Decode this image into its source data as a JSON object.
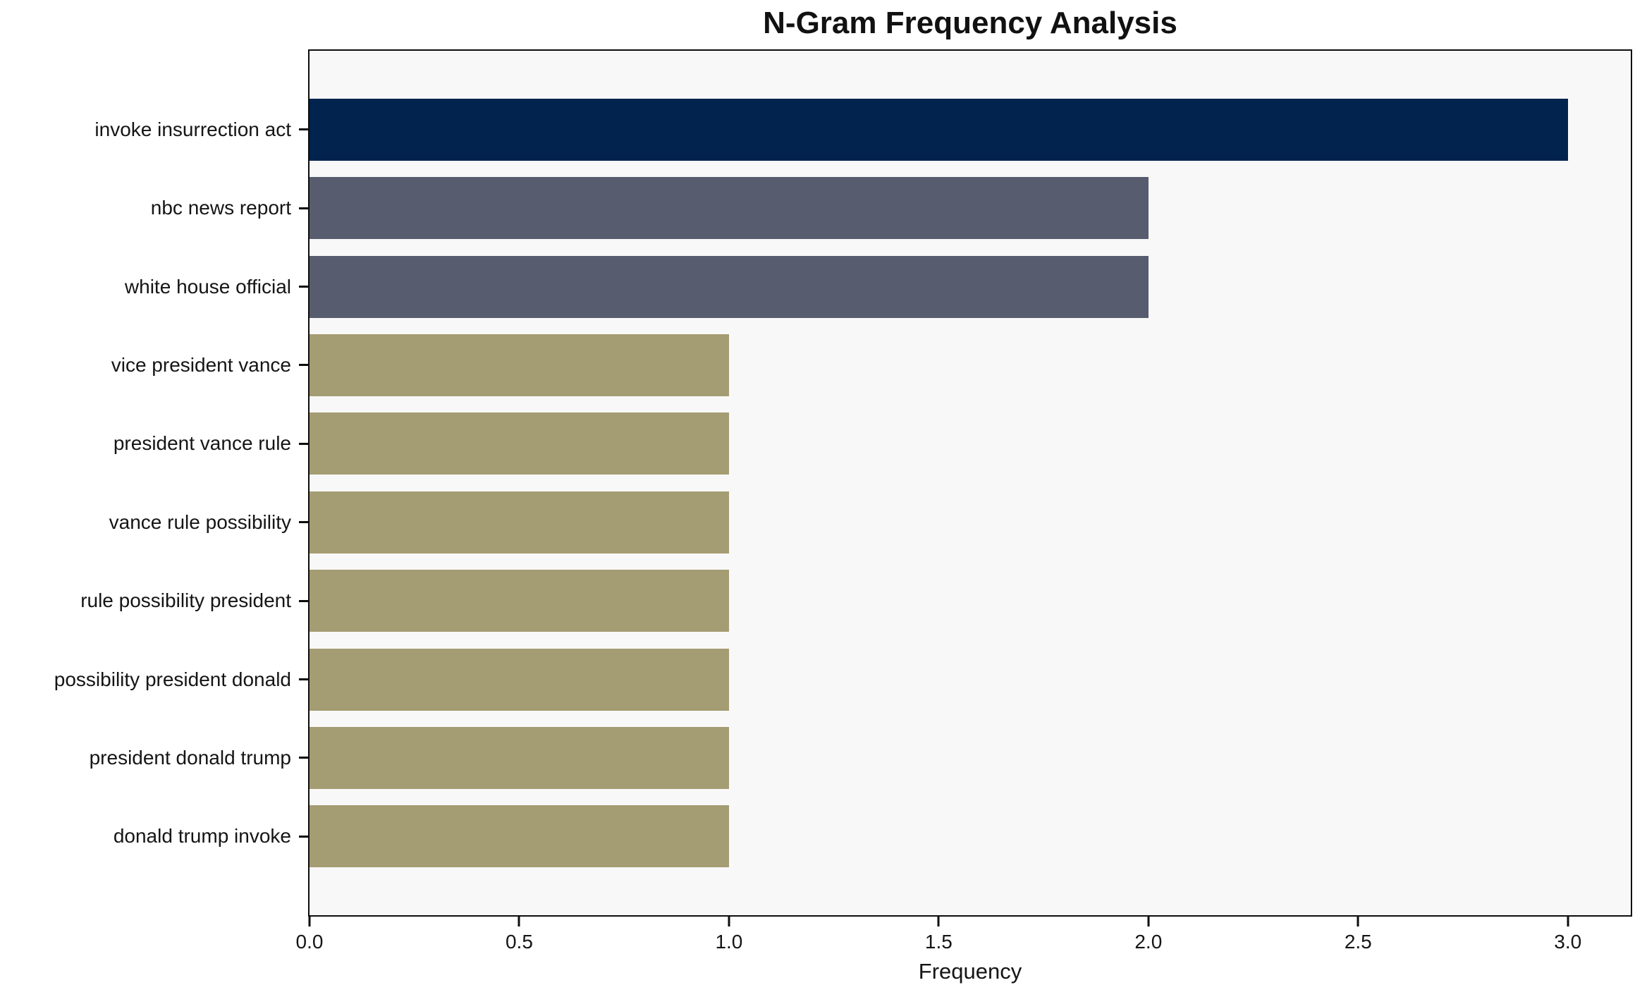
{
  "chart_data": {
    "type": "bar",
    "orientation": "horizontal",
    "title": "N-Gram Frequency Analysis",
    "xlabel": "Frequency",
    "ylabel": "",
    "categories": [
      "invoke insurrection act",
      "nbc news report",
      "white house official",
      "vice president vance",
      "president vance rule",
      "vance rule possibility",
      "rule possibility president",
      "possibility president donald",
      "president donald trump",
      "donald trump invoke"
    ],
    "values": [
      3,
      2,
      2,
      1,
      1,
      1,
      1,
      1,
      1,
      1
    ],
    "bar_colors": [
      "#01234e",
      "#575d6e",
      "#575d6e",
      "#a49c72",
      "#a49c72",
      "#a49c72",
      "#a49c72",
      "#a49c72",
      "#a49c72",
      "#a49c72"
    ],
    "x_tick_labels": [
      "0.0",
      "0.5",
      "1.0",
      "1.5",
      "2.0",
      "2.5",
      "3.0"
    ],
    "x_tick_values": [
      0,
      0.5,
      1.0,
      1.5,
      2.0,
      2.5,
      3.0
    ],
    "xlim": [
      0,
      3.15
    ],
    "grid": false,
    "legend": false,
    "colors": {
      "plot_background": "#f8f8f8",
      "figure_background": "#ffffff",
      "spine": "#0d0d0d",
      "text": "#151515"
    }
  }
}
